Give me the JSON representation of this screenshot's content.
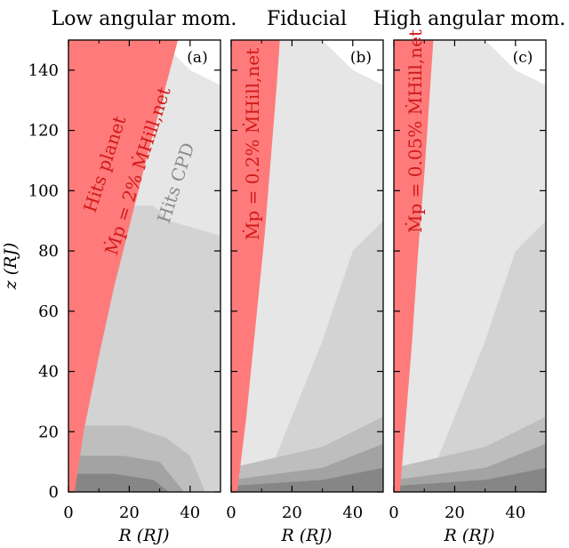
{
  "chart_data": [
    {
      "type": "area",
      "title": "Low angular mom.",
      "panel_label": "(a)",
      "xlabel": "R (RJ)",
      "ylabel": "z (RJ)",
      "xlim": [
        0,
        50
      ],
      "ylim": [
        0,
        150
      ],
      "xticks": [
        0,
        20,
        40
      ],
      "yticks": [
        0,
        20,
        40,
        60,
        80,
        100,
        120,
        140
      ],
      "planet_boundary": {
        "R": [
          2,
          5,
          10,
          15,
          20,
          25,
          30,
          36
        ],
        "z": [
          0,
          20,
          45,
          68,
          88,
          108,
          127,
          150
        ]
      },
      "annotations": [
        "Hits planet",
        "Mp = 2% ṀHill,net",
        "Hits CPD"
      ],
      "colors": {
        "planet_region": "#ff7b7b",
        "cpd_region": "#d3d3d3",
        "light_region": "#e6e6e6"
      }
    },
    {
      "type": "area",
      "title": "Fiducial",
      "panel_label": "(b)",
      "xlabel": "R (RJ)",
      "xlim": [
        0,
        50
      ],
      "ylim": [
        0,
        150
      ],
      "xticks": [
        0,
        20,
        40
      ],
      "planet_boundary": {
        "R": [
          2,
          5,
          8,
          11,
          13,
          15,
          16
        ],
        "z": [
          0,
          25,
          55,
          85,
          110,
          135,
          150
        ]
      },
      "annotations": [
        "Mp = 0.2% ṀHill,net"
      ],
      "colors": {
        "planet_region": "#ff7b7b",
        "cpd_region": "#d3d3d3",
        "light_region": "#e6e6e6"
      }
    },
    {
      "type": "area",
      "title": "High angular mom.",
      "panel_label": "(c)",
      "xlabel": "R (RJ)",
      "xlim": [
        0,
        50
      ],
      "ylim": [
        0,
        150
      ],
      "xticks": [
        0,
        20,
        40
      ],
      "planet_boundary": {
        "R": [
          2,
          4,
          6,
          8,
          10,
          12,
          13
        ],
        "z": [
          0,
          25,
          50,
          80,
          105,
          135,
          150
        ]
      },
      "annotations": [
        "Mp = 0.05% ṀHill,net"
      ],
      "colors": {
        "planet_region": "#ff7b7b",
        "cpd_region": "#d3d3d3",
        "light_region": "#e6e6e6"
      }
    }
  ],
  "text": {
    "title_a": "Low angular mom.",
    "title_b": "Fiducial",
    "title_c": "High angular mom.",
    "label_a": "(a)",
    "label_b": "(b)",
    "label_c": "(c)",
    "hits_planet": "Hits planet",
    "hits_cpd": "Hits CPD",
    "mdot_a": "Ṁp = 2% ṀHill,net",
    "mdot_b": "Ṁp = 0.2% ṀHill,net",
    "mdot_c": "Ṁp = 0.05% ṀHill,net",
    "xlabel": "R (RJ)",
    "ylabel": "z (RJ)"
  }
}
